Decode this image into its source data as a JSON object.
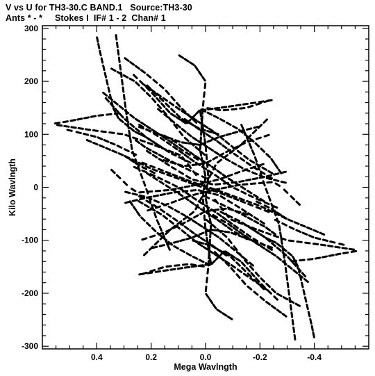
{
  "header": {
    "line1": "V vs U for TH3-30.C BAND.1   Source:TH3-30",
    "line2": "Ants * - *     Stokes I  IF# 1 - 2  Chan# 1"
  },
  "chart_data": {
    "type": "scatter",
    "title": "V vs U for TH3-30.C BAND.1   Source:TH3-30",
    "subtitle": "Ants * - *     Stokes I  IF# 1 - 2  Chan# 1",
    "xlabel": "Mega Wavlngth",
    "ylabel": "Kilo Wavlngth",
    "xlim": [
      0.6,
      -0.6
    ],
    "ylim": [
      -305,
      305
    ],
    "x_ticks": [
      0.4,
      0.2,
      0.0,
      -0.2,
      -0.4
    ],
    "x_tick_labels": [
      "0.4",
      "0.2",
      "0.0",
      "-0.2",
      "-0.4"
    ],
    "y_ticks": [
      300,
      200,
      100,
      0,
      -100,
      -200,
      -300
    ],
    "y_tick_labels": [
      "300",
      "200",
      "100",
      "0",
      "-100",
      "-200",
      "-300"
    ],
    "grid": false,
    "marker_color": "#000000",
    "tracks": [
      {
        "points": [
          [
            0.33,
            290
          ],
          [
            0.29,
            135
          ],
          [
            0.27,
            70
          ],
          [
            0.22,
            0
          ],
          [
            0.18,
            -60
          ],
          [
            0.13,
            -120
          ]
        ]
      },
      {
        "points": [
          [
            0.55,
            118
          ],
          [
            0.42,
            108
          ],
          [
            0.3,
            100
          ],
          [
            0.19,
            80
          ],
          [
            0.09,
            60
          ],
          [
            0.03,
            20
          ]
        ]
      },
      {
        "points": [
          [
            0.27,
            215
          ],
          [
            0.2,
            180
          ],
          [
            0.13,
            140
          ],
          [
            0.07,
            120
          ],
          [
            0.02,
            146
          ]
        ]
      },
      {
        "points": [
          [
            0.02,
            145
          ],
          [
            0.0,
            80
          ],
          [
            -0.01,
            20
          ],
          [
            0.0,
            -20
          ],
          [
            -0.02,
            -70
          ]
        ]
      },
      {
        "points": [
          [
            0.02,
            145
          ],
          [
            -0.08,
            152
          ],
          [
            -0.16,
            158
          ],
          [
            -0.25,
            165
          ]
        ]
      },
      {
        "points": [
          [
            0.23,
            195
          ],
          [
            0.16,
            170
          ],
          [
            0.09,
            145
          ],
          [
            0.03,
            125
          ],
          [
            -0.03,
            105
          ],
          [
            -0.09,
            80
          ],
          [
            -0.16,
            52
          ],
          [
            -0.25,
            25
          ]
        ]
      },
      {
        "points": [
          [
            0.18,
            150
          ],
          [
            0.11,
            120
          ],
          [
            0.05,
            95
          ],
          [
            -0.01,
            75
          ],
          [
            -0.07,
            55
          ],
          [
            -0.14,
            35
          ],
          [
            -0.22,
            18
          ],
          [
            -0.3,
            8
          ]
        ]
      },
      {
        "points": [
          [
            0.38,
            180
          ],
          [
            0.32,
            155
          ],
          [
            0.26,
            130
          ],
          [
            0.2,
            110
          ],
          [
            0.14,
            90
          ],
          [
            0.08,
            68
          ],
          [
            0.02,
            50
          ]
        ]
      },
      {
        "points": [
          [
            0.22,
            70
          ],
          [
            0.13,
            40
          ],
          [
            0.05,
            15
          ],
          [
            -0.03,
            5
          ],
          [
            -0.12,
            10
          ],
          [
            -0.22,
            20
          ],
          [
            -0.3,
            30
          ]
        ]
      },
      {
        "points": [
          [
            0.25,
            120
          ],
          [
            0.17,
            95
          ],
          [
            0.1,
            70
          ],
          [
            0.04,
            48
          ],
          [
            -0.03,
            25
          ],
          [
            -0.1,
            0
          ],
          [
            -0.18,
            -20
          ],
          [
            -0.27,
            -40
          ]
        ]
      },
      {
        "points": [
          [
            0.3,
            60
          ],
          [
            0.2,
            35
          ],
          [
            0.12,
            20
          ],
          [
            0.04,
            5
          ],
          [
            -0.05,
            -10
          ],
          [
            -0.15,
            -30
          ],
          [
            -0.24,
            -48
          ]
        ]
      },
      {
        "points": [
          [
            0.16,
            100
          ],
          [
            0.1,
            82
          ],
          [
            0.04,
            60
          ],
          [
            -0.02,
            40
          ],
          [
            -0.08,
            18
          ],
          [
            -0.15,
            -5
          ],
          [
            -0.22,
            -28
          ]
        ]
      },
      {
        "points": [
          [
            0.02,
            148
          ],
          [
            -0.05,
            130
          ],
          [
            -0.12,
            110
          ],
          [
            -0.18,
            85
          ],
          [
            -0.24,
            55
          ],
          [
            -0.28,
            25
          ]
        ]
      },
      {
        "points": [
          [
            0.08,
            130
          ],
          [
            0.02,
            108
          ],
          [
            -0.04,
            88
          ],
          [
            -0.1,
            65
          ],
          [
            -0.17,
            40
          ],
          [
            -0.25,
            15
          ]
        ]
      },
      {
        "points": [
          [
            0.23,
            -130
          ],
          [
            0.13,
            -80
          ],
          [
            0.04,
            -45
          ],
          [
            0.01,
            -15
          ],
          [
            -0.05,
            -30
          ],
          [
            -0.13,
            -50
          ],
          [
            -0.22,
            -75
          ],
          [
            -0.26,
            -90
          ]
        ]
      },
      {
        "points": [
          [
            0.24,
            -165
          ],
          [
            0.15,
            -150
          ],
          [
            0.06,
            -145
          ],
          [
            0.0,
            -150
          ]
        ]
      },
      {
        "points": [
          [
            0.0,
            -60
          ],
          [
            -0.08,
            -95
          ],
          [
            -0.14,
            -135
          ],
          [
            -0.2,
            -170
          ],
          [
            -0.26,
            -200
          ],
          [
            -0.35,
            -225
          ]
        ]
      },
      {
        "points": [
          [
            -0.02,
            -70
          ],
          [
            -0.01,
            -150
          ],
          [
            0.0,
            -200
          ],
          [
            -0.04,
            -230
          ],
          [
            -0.1,
            -250
          ]
        ]
      },
      {
        "points": [
          [
            0.22,
            -45
          ],
          [
            0.13,
            -30
          ],
          [
            0.05,
            -15
          ],
          [
            -0.03,
            -5
          ],
          [
            -0.13,
            5
          ],
          [
            -0.25,
            10
          ]
        ]
      },
      {
        "points": [
          [
            0.24,
            -100
          ],
          [
            0.15,
            -85
          ],
          [
            0.07,
            -65
          ],
          [
            0.0,
            -45
          ],
          [
            -0.08,
            -40
          ],
          [
            -0.16,
            -52
          ]
        ]
      },
      {
        "points": [
          [
            0.2,
            -115
          ],
          [
            0.12,
            -105
          ],
          [
            0.05,
            -95
          ],
          [
            -0.02,
            -80
          ],
          [
            -0.09,
            -85
          ],
          [
            -0.17,
            -100
          ],
          [
            -0.25,
            -115
          ]
        ]
      },
      {
        "points": [
          [
            -0.05,
            -45
          ],
          [
            -0.13,
            -65
          ],
          [
            -0.22,
            -95
          ],
          [
            -0.3,
            -130
          ],
          [
            -0.37,
            -170
          ]
        ]
      },
      {
        "points": [
          [
            -0.03,
            -120
          ],
          [
            -0.09,
            -150
          ],
          [
            -0.15,
            -185
          ],
          [
            -0.22,
            -215
          ],
          [
            -0.3,
            -245
          ]
        ]
      },
      {
        "points": [
          [
            -0.16,
            -75
          ],
          [
            -0.22,
            -95
          ],
          [
            -0.26,
            -105
          ],
          [
            -0.32,
            -130
          ],
          [
            -0.34,
            -150
          ],
          [
            -0.39,
            -260
          ],
          [
            -0.4,
            -285
          ]
        ]
      },
      {
        "points": [
          [
            -0.31,
            -140
          ],
          [
            -0.4,
            -135
          ],
          [
            -0.5,
            -125
          ],
          [
            -0.56,
            -120
          ]
        ]
      },
      {
        "points": [
          [
            -0.25,
            -60
          ],
          [
            -0.33,
            -80
          ],
          [
            -0.4,
            -95
          ],
          [
            -0.48,
            -105
          ],
          [
            -0.52,
            -110
          ]
        ]
      },
      {
        "points": [
          [
            -0.25,
            10
          ],
          [
            -0.28,
            0
          ],
          [
            -0.31,
            -15
          ],
          [
            -0.35,
            -35
          ]
        ]
      },
      {
        "points": [
          [
            -0.18,
            -25
          ],
          [
            -0.24,
            -40
          ],
          [
            -0.3,
            -60
          ],
          [
            -0.37,
            -75
          ],
          [
            -0.44,
            -90
          ]
        ]
      },
      {
        "points": [
          [
            0.05,
            -100
          ],
          [
            -0.02,
            -110
          ],
          [
            -0.09,
            -130
          ],
          [
            -0.15,
            -160
          ],
          [
            -0.22,
            -195
          ]
        ]
      }
    ]
  }
}
